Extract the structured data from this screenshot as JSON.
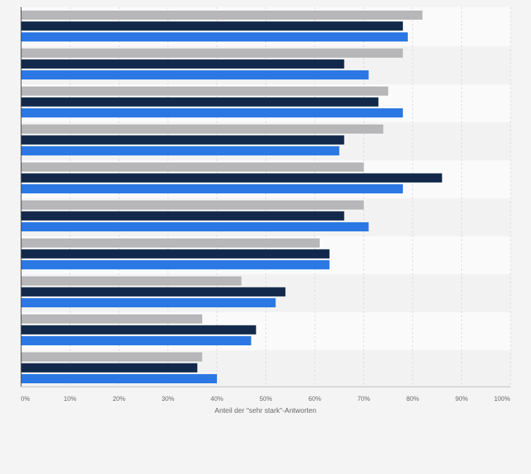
{
  "chart_data": {
    "type": "bar",
    "orientation": "horizontal",
    "title": "",
    "xlabel": "Anteil der \"sehr stark\"-Antworten",
    "ylabel": "",
    "xlim": [
      0,
      100
    ],
    "x_ticks": [
      "0%",
      "10%",
      "20%",
      "30%",
      "40%",
      "50%",
      "60%",
      "70%",
      "80%",
      "90%",
      "100%"
    ],
    "grid": true,
    "category_count": 10,
    "series": [
      {
        "color": "#b7b7b9",
        "values": [
          82,
          78,
          75,
          74,
          70,
          70,
          61,
          45,
          37,
          37
        ]
      },
      {
        "color": "#13294b",
        "values": [
          78,
          66,
          73,
          66,
          86,
          66,
          63,
          54,
          48,
          36
        ]
      },
      {
        "color": "#2b78e4",
        "values": [
          79,
          71,
          78,
          65,
          78,
          71,
          63,
          52,
          47,
          40
        ]
      }
    ]
  }
}
